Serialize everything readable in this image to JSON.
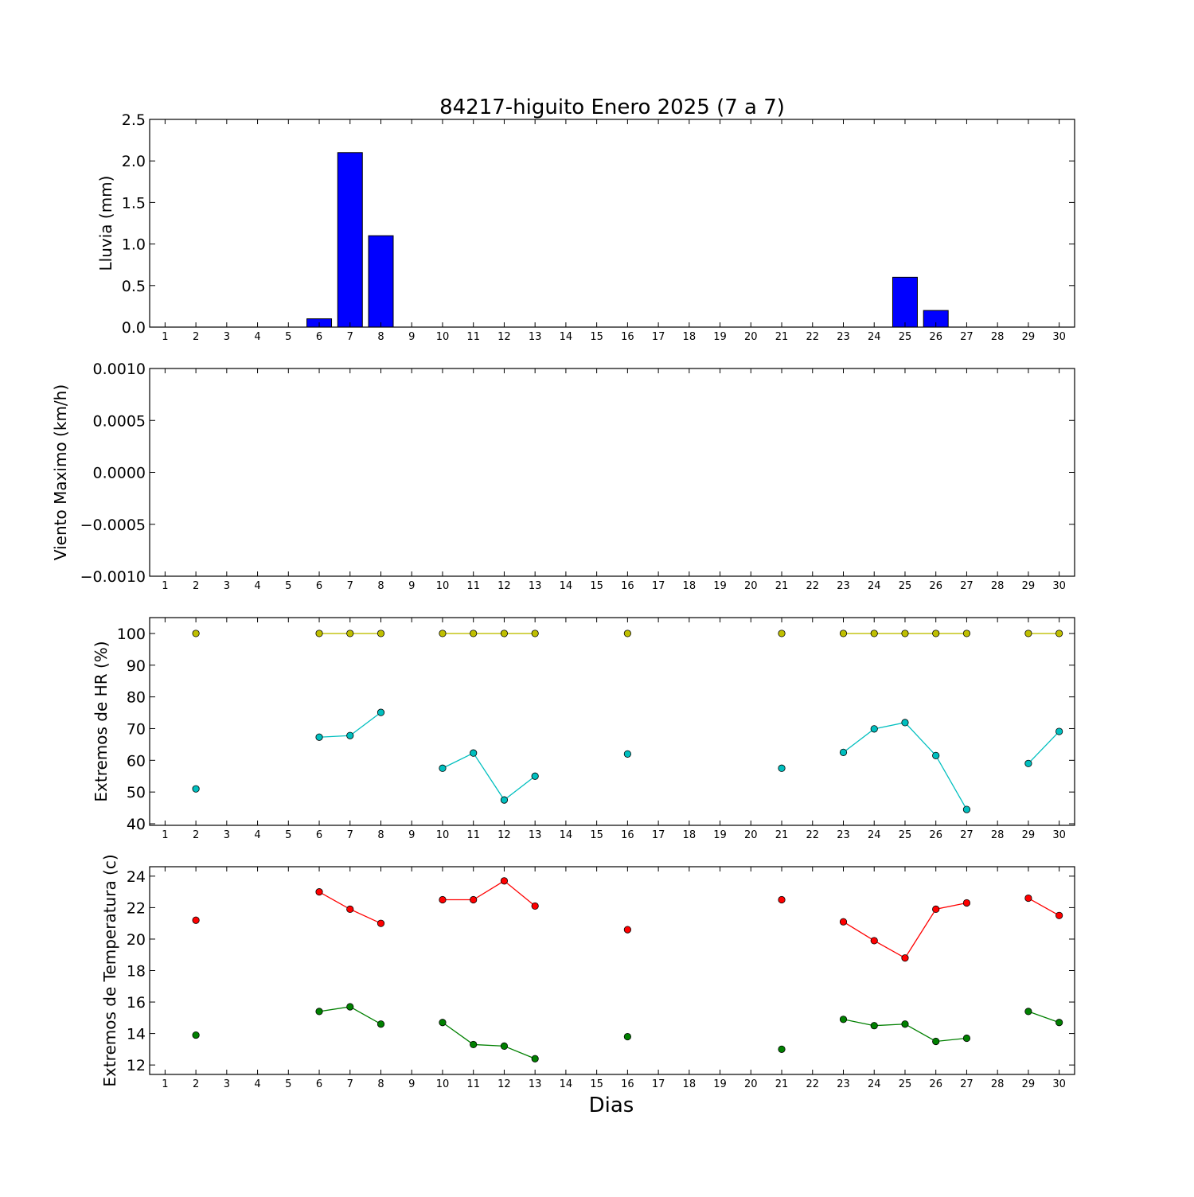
{
  "title": "84217-higuito Enero 2025  (7 a 7)",
  "xlabel": "Dias",
  "days": [
    1,
    2,
    3,
    4,
    5,
    6,
    7,
    8,
    9,
    10,
    11,
    12,
    13,
    14,
    15,
    16,
    17,
    18,
    19,
    20,
    21,
    22,
    23,
    24,
    25,
    26,
    27,
    28,
    29,
    30
  ],
  "chart_data": [
    {
      "type": "bar",
      "ylabel": "Lluvia (mm)",
      "ylim": [
        0,
        2.5
      ],
      "yticks": [
        "0.0",
        "0.5",
        "1.0",
        "1.5",
        "2.0",
        "2.5"
      ],
      "ytick_values": [
        0,
        0.5,
        1.0,
        1.5,
        2.0,
        2.5
      ],
      "xlim": [
        0.5,
        30.5
      ],
      "categories": [
        1,
        2,
        3,
        4,
        5,
        6,
        7,
        8,
        9,
        10,
        11,
        12,
        13,
        14,
        15,
        16,
        17,
        18,
        19,
        20,
        21,
        22,
        23,
        24,
        25,
        26,
        27,
        28,
        29,
        30
      ],
      "values": [
        null,
        0,
        0,
        0,
        0,
        0.1,
        2.1,
        1.1,
        0,
        0,
        0,
        0,
        0,
        0,
        0,
        0,
        0,
        0,
        0,
        0,
        0,
        0,
        0,
        0,
        0.6,
        0.2,
        0,
        0,
        0,
        null
      ],
      "colors": {
        "bar": "#0000ff",
        "edge": "#000000"
      }
    },
    {
      "type": "line",
      "ylabel": "Viento Maximo (km/h)",
      "ylim": [
        -0.001,
        0.001
      ],
      "yticks": [
        "−0.0010",
        "−0.0005",
        "0.0000",
        "0.0005",
        "0.0010"
      ],
      "ytick_values": [
        -0.001,
        -0.0005,
        0,
        0.0005,
        0.001
      ],
      "xlim": [
        0.5,
        30.5
      ],
      "series": []
    },
    {
      "type": "line",
      "ylabel": "Extremos de HR (%)",
      "ylim": [
        39.5,
        105
      ],
      "yticks": [
        "40",
        "50",
        "60",
        "70",
        "80",
        "90",
        "100"
      ],
      "ytick_values": [
        40,
        50,
        60,
        70,
        80,
        90,
        100
      ],
      "xlim": [
        0.5,
        30.5
      ],
      "x": [
        1,
        2,
        3,
        4,
        5,
        6,
        7,
        8,
        9,
        10,
        11,
        12,
        13,
        14,
        15,
        16,
        17,
        18,
        19,
        20,
        21,
        22,
        23,
        24,
        25,
        26,
        27,
        28,
        29,
        30
      ],
      "series": [
        {
          "color": "#bfbf00",
          "values": [
            null,
            100,
            null,
            null,
            null,
            100,
            100,
            100,
            null,
            100,
            100,
            100,
            100,
            null,
            null,
            100,
            null,
            null,
            null,
            null,
            100,
            null,
            100,
            100,
            100,
            100,
            100,
            null,
            100,
            100
          ]
        },
        {
          "color": "#00bfbf",
          "values": [
            null,
            51,
            null,
            null,
            null,
            67.3,
            67.8,
            75.1,
            null,
            57.5,
            62.3,
            47.5,
            55,
            null,
            null,
            62,
            null,
            null,
            null,
            null,
            57.5,
            null,
            62.5,
            69.9,
            71.9,
            61.5,
            44.5,
            null,
            59,
            69.1
          ]
        }
      ]
    },
    {
      "type": "line",
      "ylabel": "Extremos de Temperatura (c)",
      "ylim": [
        11.4,
        24.6
      ],
      "yticks": [
        "12",
        "14",
        "16",
        "18",
        "20",
        "22",
        "24"
      ],
      "ytick_values": [
        12,
        14,
        16,
        18,
        20,
        22,
        24
      ],
      "xlim": [
        0.5,
        30.5
      ],
      "x": [
        1,
        2,
        3,
        4,
        5,
        6,
        7,
        8,
        9,
        10,
        11,
        12,
        13,
        14,
        15,
        16,
        17,
        18,
        19,
        20,
        21,
        22,
        23,
        24,
        25,
        26,
        27,
        28,
        29,
        30
      ],
      "series": [
        {
          "color": "#ff0000",
          "values": [
            null,
            21.2,
            null,
            null,
            null,
            23,
            21.9,
            21,
            null,
            22.5,
            22.5,
            23.7,
            22.1,
            null,
            null,
            20.6,
            null,
            null,
            null,
            null,
            22.5,
            null,
            21.1,
            19.9,
            18.8,
            21.9,
            22.3,
            null,
            22.6,
            21.5
          ]
        },
        {
          "color": "#008000",
          "values": [
            null,
            13.9,
            null,
            null,
            null,
            15.4,
            15.7,
            14.6,
            null,
            14.7,
            13.3,
            13.2,
            12.4,
            null,
            null,
            13.8,
            null,
            null,
            null,
            null,
            13,
            null,
            14.9,
            14.5,
            14.6,
            13.5,
            13.7,
            null,
            15.4,
            14.7
          ]
        }
      ]
    }
  ]
}
